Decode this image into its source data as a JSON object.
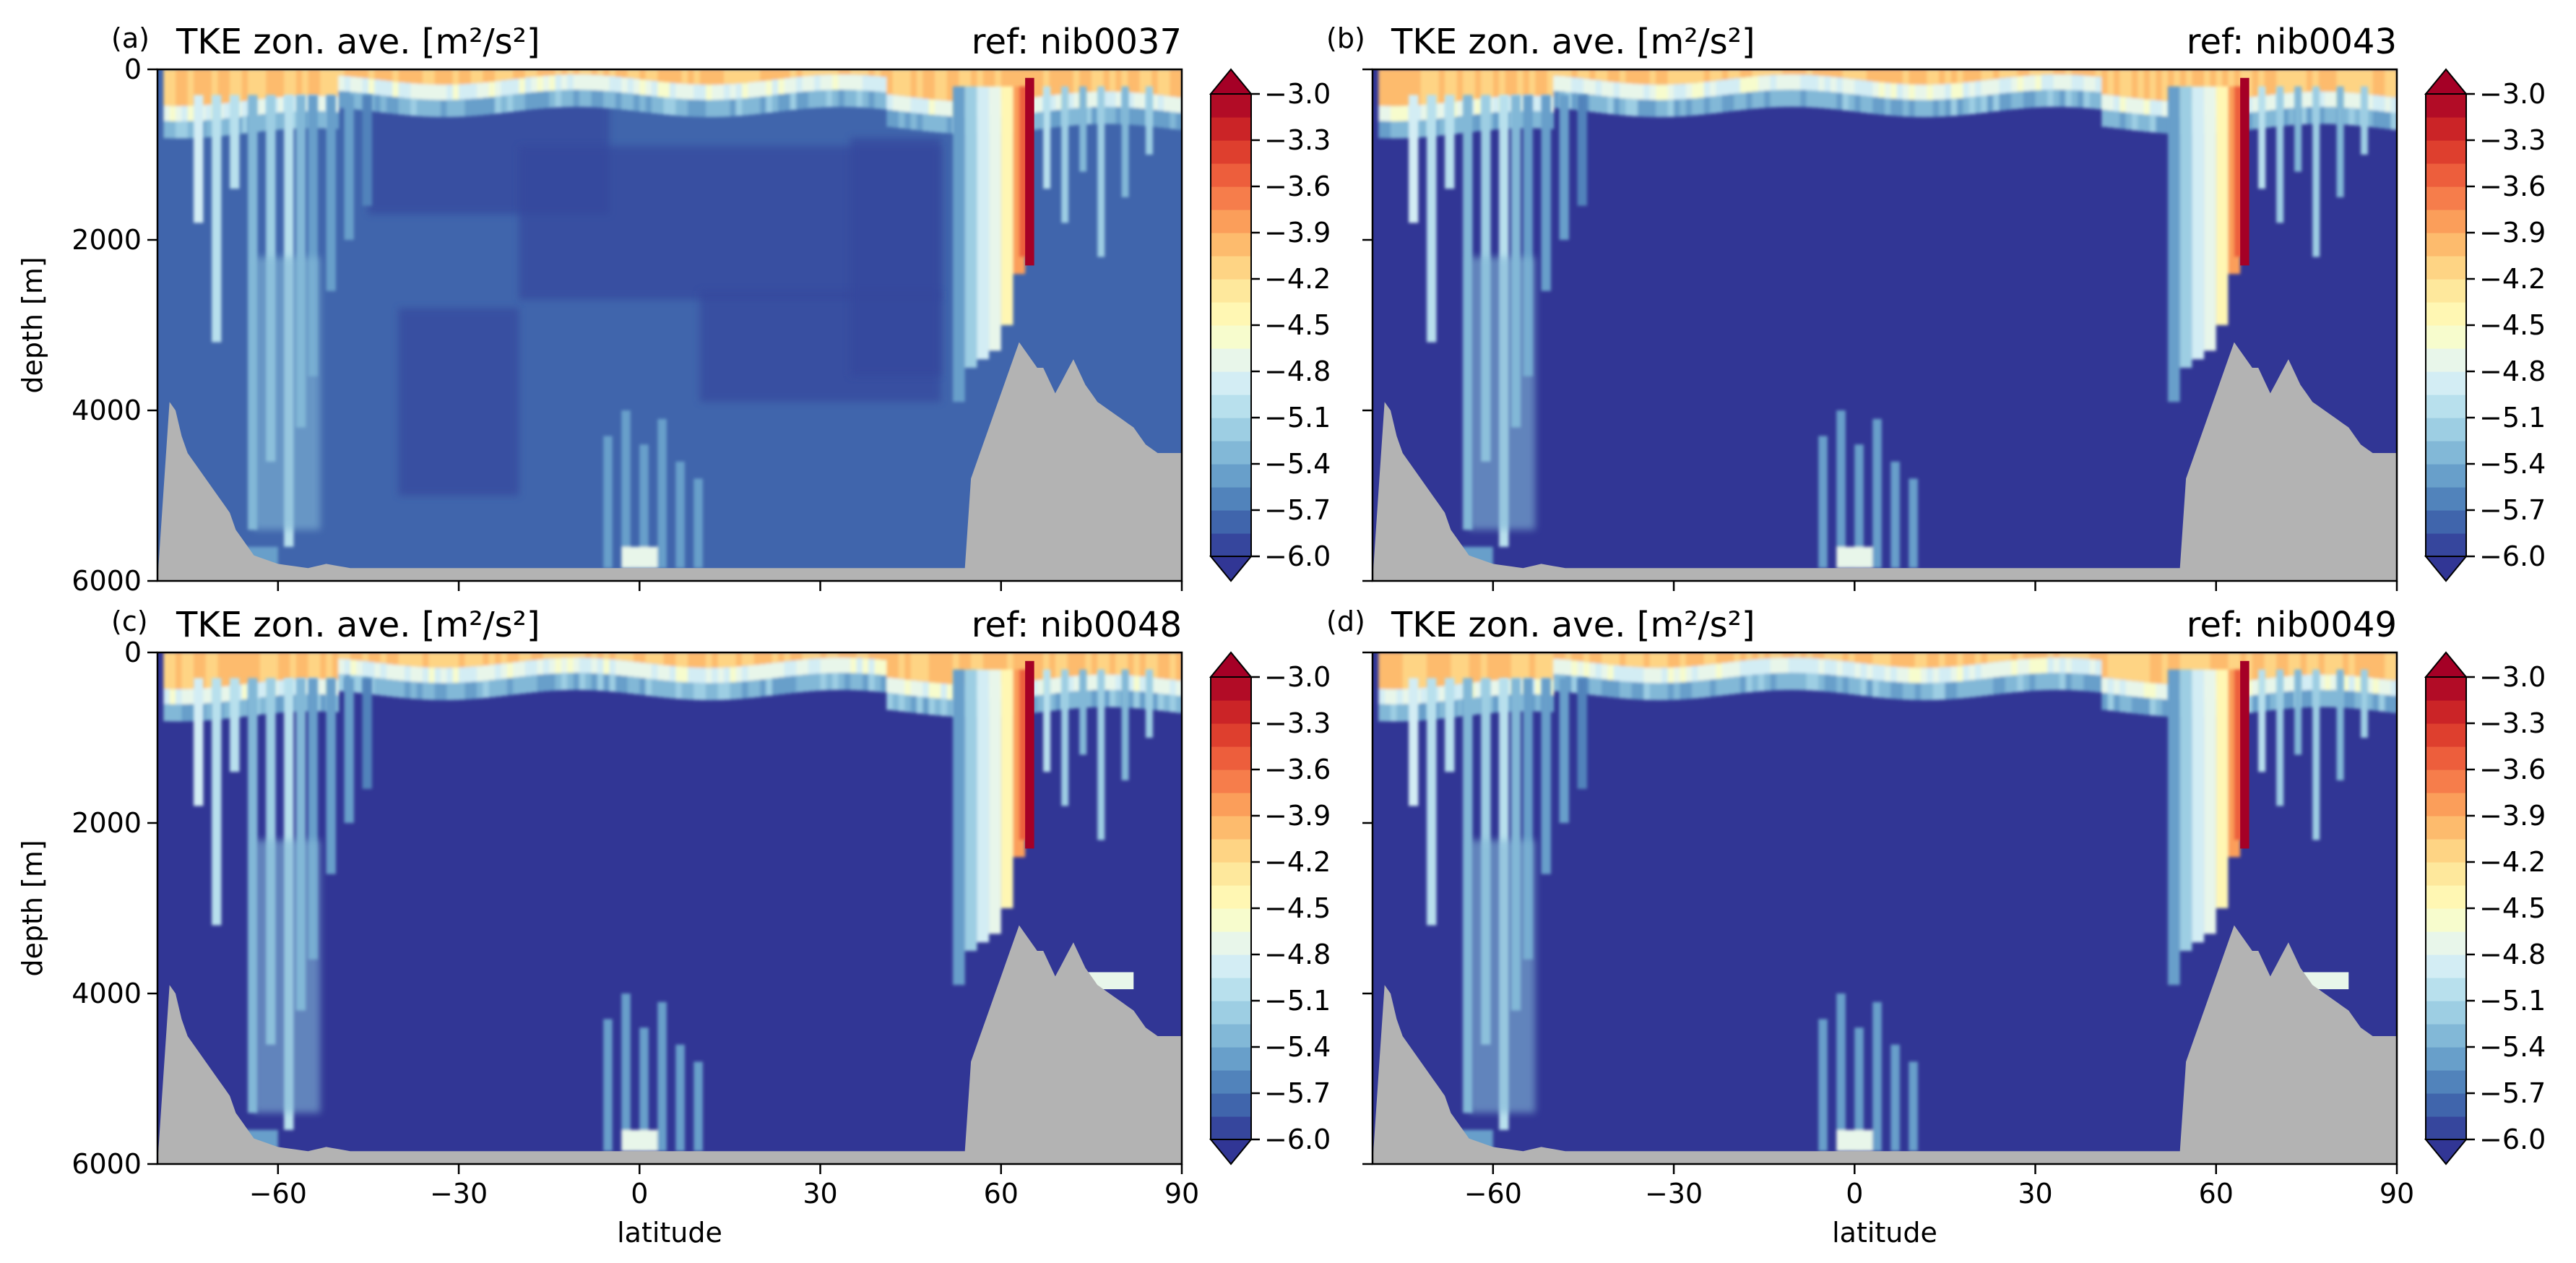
{
  "colors": {
    "land": "#b3b3b3",
    "under": "#313695",
    "over": "#a50026",
    "colormap": [
      "#313695",
      "#4575b4",
      "#74add1",
      "#abd9e9",
      "#e0f3f8",
      "#ffffbf",
      "#fee090",
      "#fdae61",
      "#f46d43",
      "#d73027",
      "#a50026"
    ]
  },
  "colorbar": {
    "ticks": [
      -3.0,
      -3.3,
      -3.6,
      -3.9,
      -4.2,
      -4.5,
      -4.8,
      -5.1,
      -5.4,
      -5.7,
      -6.0
    ],
    "tick_labels": [
      "−3.0",
      "−3.3",
      "−3.6",
      "−3.9",
      "−4.2",
      "−4.5",
      "−4.8",
      "−5.1",
      "−5.4",
      "−5.7",
      "−6.0"
    ],
    "range": [
      -6.0,
      -3.0
    ],
    "levels": 20,
    "extend": "both"
  },
  "chart_data": [
    {
      "type": "heatmap",
      "panel": "(a)",
      "title": "TKE zon. ave. [m²/s²]",
      "ref": "ref: nib0037",
      "xlabel": "",
      "ylabel": "depth [m]",
      "xlim": [
        -80,
        90
      ],
      "ylim": [
        6000,
        0
      ],
      "xticks": [
        -60,
        -30,
        0,
        30,
        60,
        90
      ],
      "xtick_labels": [],
      "yticks": [
        0,
        2000,
        4000,
        6000
      ],
      "ytick_labels": [
        "0",
        "2000",
        "4000",
        "6000"
      ],
      "background_log10": -5.7
    },
    {
      "type": "heatmap",
      "panel": "(b)",
      "title": "TKE zon. ave. [m²/s²]",
      "ref": "ref: nib0043",
      "xlabel": "",
      "ylabel": "",
      "xlim": [
        -80,
        90
      ],
      "ylim": [
        6000,
        0
      ],
      "xticks": [
        -60,
        -30,
        0,
        30,
        60,
        90
      ],
      "xtick_labels": [],
      "yticks": [
        0,
        2000,
        4000,
        6000
      ],
      "ytick_labels": [],
      "background_log10": -6.0
    },
    {
      "type": "heatmap",
      "panel": "(c)",
      "title": "TKE zon. ave. [m²/s²]",
      "ref": "ref: nib0048",
      "xlabel": "latitude",
      "ylabel": "depth [m]",
      "xlim": [
        -80,
        90
      ],
      "ylim": [
        6000,
        0
      ],
      "xticks": [
        -60,
        -30,
        0,
        30,
        60,
        90
      ],
      "xtick_labels": [
        "−60",
        "−30",
        "0",
        "30",
        "60",
        "90"
      ],
      "yticks": [
        0,
        2000,
        4000,
        6000
      ],
      "ytick_labels": [
        "0",
        "2000",
        "4000",
        "6000"
      ],
      "background_log10": -6.0
    },
    {
      "type": "heatmap",
      "panel": "(d)",
      "title": "TKE zon. ave. [m²/s²]",
      "ref": "ref: nib0049",
      "xlabel": "latitude",
      "ylabel": "",
      "xlim": [
        -80,
        90
      ],
      "ylim": [
        6000,
        0
      ],
      "xticks": [
        -60,
        -30,
        0,
        30,
        60,
        90
      ],
      "xtick_labels": [
        "−60",
        "−30",
        "0",
        "30",
        "60",
        "90"
      ],
      "yticks": [
        0,
        2000,
        4000,
        6000
      ],
      "ytick_labels": [],
      "background_log10": -6.0
    }
  ],
  "bathymetry": {
    "lat": [
      -80,
      -78,
      -77,
      -76,
      -75,
      -73,
      -70,
      -68,
      -67,
      -64,
      -60,
      -55,
      -52,
      -48,
      -45,
      54,
      55,
      57,
      59,
      61,
      62,
      63,
      64,
      65,
      66,
      67,
      69,
      72,
      74,
      76,
      78,
      80,
      82,
      84,
      86,
      88,
      90
    ],
    "depth": [
      6000,
      3900,
      4000,
      4300,
      4500,
      4700,
      5000,
      5200,
      5400,
      5700,
      5800,
      5850,
      5800,
      5850,
      5850,
      5850,
      4800,
      4400,
      4000,
      3600,
      3400,
      3200,
      3300,
      3400,
      3500,
      3500,
      3800,
      3400,
      3700,
      3900,
      4000,
      4100,
      4200,
      4400,
      4500,
      4500,
      4500
    ]
  }
}
